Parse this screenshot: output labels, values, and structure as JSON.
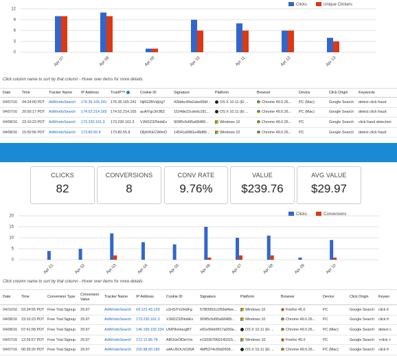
{
  "chart_data": [
    {
      "type": "bar",
      "categories": [
        "Apr 07",
        "Apr 08",
        "Apr 09",
        "Apr 10",
        "Apr 11",
        "Apr 12",
        "Apr 13"
      ],
      "series": [
        {
          "name": "Clicks",
          "color": "#3366cc",
          "values": [
            10,
            11,
            1,
            9,
            8,
            6,
            4
          ]
        },
        {
          "name": "Unique Clickers",
          "color": "#dc3912",
          "values": [
            10,
            10,
            1,
            6,
            6,
            6,
            3
          ]
        }
      ],
      "ylim": [
        0,
        12
      ],
      "yticks": [
        0,
        3,
        6,
        9,
        12
      ],
      "grid": true,
      "legend": "top-right"
    },
    {
      "type": "bar",
      "categories": [
        "Apr 01",
        "Apr 02",
        "Apr 03",
        "Apr 04",
        "Apr 05",
        "Apr 06",
        "Apr 07",
        "Apr 08",
        "Apr 09",
        "Apr 10"
      ],
      "series": [
        {
          "name": "Clicks",
          "color": "#3366cc",
          "values": [
            4,
            5,
            12,
            8,
            7,
            15,
            10,
            11,
            1,
            9
          ]
        },
        {
          "name": "Conversions",
          "color": "#dc3912",
          "values": [
            0,
            0,
            2,
            0,
            0,
            1,
            2,
            2,
            0,
            1
          ]
        }
      ],
      "ylim": [
        0,
        20
      ],
      "yticks": [
        0,
        5,
        10,
        15,
        20
      ],
      "grid": true,
      "legend": "top-right"
    }
  ],
  "hint": "Click column name to sort by that column - Hover over items for more details.",
  "clicks_table": {
    "headers": [
      "Date",
      "Time",
      "Tracker Name",
      "IP Address",
      "TrueIP™",
      "Cookie ID",
      "Signature",
      "Platform",
      "Browser",
      "Device",
      "Click Origin",
      "Keywords"
    ],
    "rows": [
      [
        "04/07/16",
        "04:24:00 PDT",
        "AdWordsSearch",
        "176.35.165.241",
        "176.35.165.241",
        "Nj6G2BVdjUg7",
        "42bbbc49a2abe66bf...",
        "OS X 10.11 (El ...",
        "Chrome 49.0.26...",
        "PC (Mac)",
        "Google Search",
        "detect click fraud"
      ],
      [
        "04/07/16",
        "20:50:17 PDT",
        "AdWordsSearch",
        "174.52.214.165",
        "174.52.214.165",
        "auAiYgc3rOBZ",
        "1524de22cdedc181...",
        "OS X 10.11 (El ...",
        "Chrome 49.0.26...",
        "PC (Mac)",
        "Google Search",
        "detect click fraud"
      ],
      [
        "04/08/16",
        "23:10:23 PDT",
        "AdWordsSearch",
        "173.230.161.3",
        "173.230.161.3",
        "VJM2Z32NnbEv",
        "909f5c5d95a68489...",
        "Windows 10",
        "Chrome 49.0.26...",
        "PC",
        "Google Search",
        "click fraud detection"
      ],
      [
        "04/08/16",
        "15:50:56 PDT",
        "AdWordsSearch",
        "173.80.55.8",
        "173.80.55.8",
        "DfjdVKECWlmO",
        "14541a9981e48d85...",
        "Windows 10",
        "Chrome 49.0.26...",
        "PC",
        "Google Search",
        "detect click fraud"
      ]
    ]
  },
  "kpis": [
    {
      "label": "CLICKS",
      "value": "82"
    },
    {
      "label": "CONVERSIONS",
      "value": "8"
    },
    {
      "label": "CONV RATE",
      "value": "9.76%"
    },
    {
      "label": "VALUE",
      "value": "$239.76"
    },
    {
      "label": "AVG VALUE",
      "value": "$29.97"
    }
  ],
  "conversions_table": {
    "headers": [
      "Date",
      "Time",
      "Conversion Type",
      "Conversion Value",
      "Tracker Name",
      "IP Address",
      "Cookie ID",
      "Signature",
      "Platform",
      "Browser",
      "Device",
      "Click Origin",
      "Keywo"
    ],
    "rows": [
      [
        "04/10/16",
        "03:34:55 PDT",
        "Free Trial Signup",
        "29.97",
        "AdWordsSearch",
        "64.121.43.129",
        "u1HSIYn2HdFg",
        "578f3952c1f59af4ee...",
        "Windows 10",
        "Firefox 45.0",
        "PC",
        "Google Search",
        "click fr"
      ],
      [
        "04/08/16",
        "23:10:23 PDT",
        "Free Trial Signup",
        "29.97",
        "AdWordsSearch",
        "173.230.161.3",
        "VJM2Z32NnbEv",
        "909f5c5d95a68489...",
        "Windows 10",
        "Chrome 49.0.26...",
        "PC",
        "Google Search",
        "click fr"
      ],
      [
        "04/08/16",
        "07:41:58 PDT",
        "Free Trial Signup",
        "29.97",
        "AdWordsSearch",
        "146.199.192.234",
        "UNP8oHavgBT",
        "e81e99eb5f17a000a...",
        "OS X 10.11 (El ...",
        "Chrome 49.0.26...",
        "PC (Mac)",
        "Google Search",
        "detect c"
      ],
      [
        "04/07/16",
        "12:26:57 PDT",
        "Free Trial Signup",
        "29.97",
        "AdWordsSearch",
        "172.12.86.78",
        "ABOckOlDieVm",
        "e193307960140315...",
        "Windows 10",
        "Firefox 45.0",
        "PC",
        "Google Search",
        "+click +"
      ],
      [
        "04/07/16",
        "06:39:20 PDT",
        "Free Trial Signup",
        "29.97",
        "AdWordsSearch",
        "216.98.83.195",
        "wMvJ5OLhO26A",
        "4bff5374c90d2606...",
        "OS X 10.11 (El ...",
        "Chrome 49.0.26...",
        "PC (Mac)",
        "Google Search",
        "click fr"
      ]
    ]
  }
}
